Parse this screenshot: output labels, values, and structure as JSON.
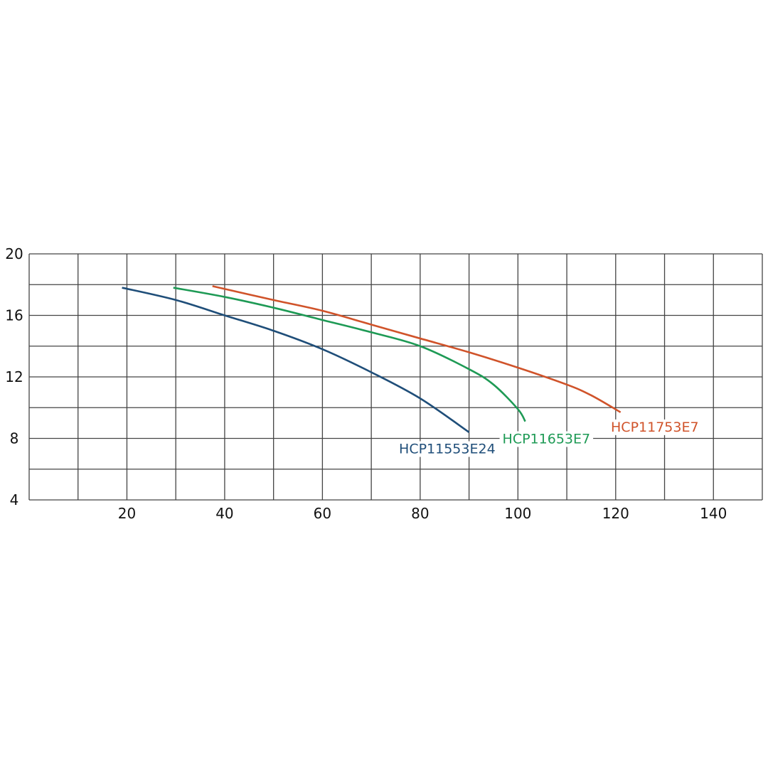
{
  "chart_data": {
    "type": "line",
    "title": "",
    "xlabel": "",
    "ylabel": "",
    "xlim": [
      0,
      150
    ],
    "ylim": [
      4,
      20
    ],
    "grid": true,
    "x_ticks": [
      20,
      40,
      60,
      80,
      100,
      120,
      140
    ],
    "y_ticks": [
      4,
      8,
      12,
      16,
      20
    ],
    "series": [
      {
        "name": "HCP11553E24",
        "color": "#1f4e79",
        "x": [
          19,
          30,
          40,
          50,
          60,
          70,
          80,
          90
        ],
        "y": [
          17.8,
          17.0,
          16.0,
          15.0,
          13.8,
          12.3,
          10.6,
          8.4
        ]
      },
      {
        "name": "HCP11653E7",
        "color": "#1e9a55",
        "x": [
          29.5,
          40,
          50,
          60,
          70,
          80,
          90,
          95,
          100,
          101.5
        ],
        "y": [
          17.8,
          17.2,
          16.5,
          15.7,
          14.9,
          14.0,
          12.5,
          11.5,
          9.9,
          9.1
        ]
      },
      {
        "name": "HCP11753E7",
        "color": "#d0532a",
        "x": [
          37.5,
          50,
          60,
          70,
          80,
          90,
          100,
          110,
          115,
          121
        ],
        "y": [
          17.9,
          17.0,
          16.3,
          15.4,
          14.5,
          13.6,
          12.6,
          11.5,
          10.8,
          9.7
        ]
      }
    ]
  }
}
